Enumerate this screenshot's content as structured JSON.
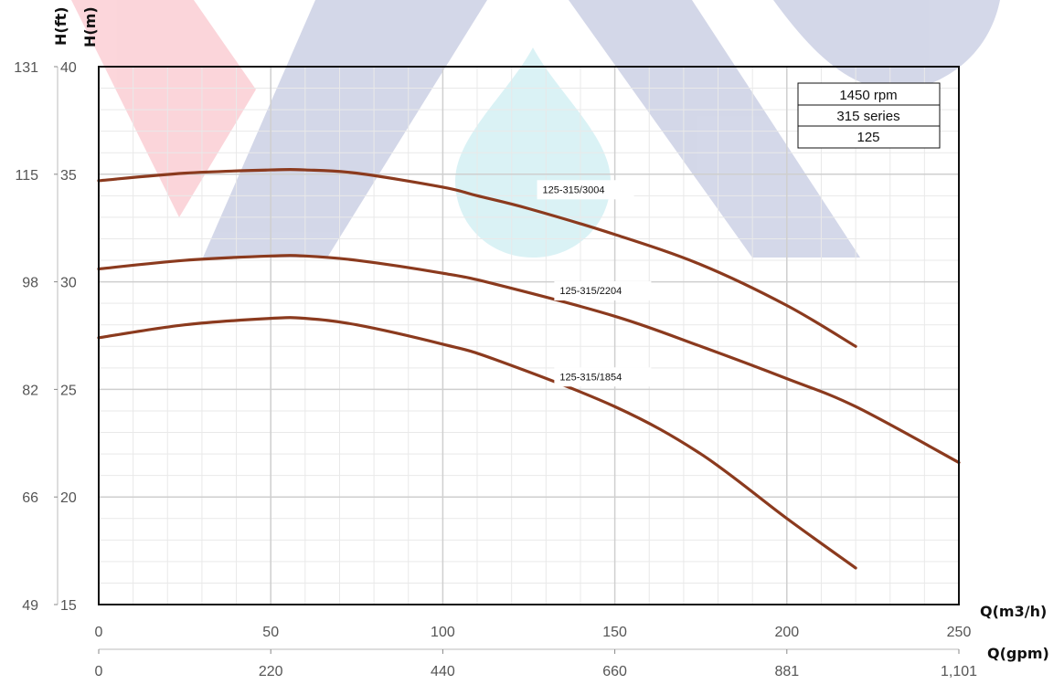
{
  "chart_data": {
    "type": "line",
    "title": "",
    "xlabel": "Q(m3/h)",
    "x2label": "Q(gpm)",
    "ylabel": "H(m)",
    "y2label": "H(ft)",
    "xlim": [
      0,
      250
    ],
    "ylim": [
      15,
      40
    ],
    "x_ticks": [
      0,
      50,
      100,
      150,
      200,
      250
    ],
    "x2_tick_labels": [
      "0",
      "220",
      "440",
      "660",
      "881",
      "1,101"
    ],
    "y_ticks": [
      15,
      20,
      25,
      30,
      35,
      40
    ],
    "y2_tick_labels": [
      "49",
      "66",
      "82",
      "98",
      "115",
      "131"
    ],
    "grid": true,
    "info_box": [
      "1450 rpm",
      "315 series",
      "125"
    ],
    "series": [
      {
        "name": "125-315/3004",
        "color": "#8b3a1e",
        "label_at": [
          129,
          34.3
        ],
        "x": [
          0,
          25,
          50,
          60,
          75,
          100,
          110,
          125,
          150,
          175,
          200,
          220
        ],
        "y": [
          34.7,
          35.05,
          35.2,
          35.2,
          35.05,
          34.4,
          34.0,
          33.4,
          32.2,
          30.8,
          28.9,
          27.0
        ]
      },
      {
        "name": "125-315/2204",
        "color": "#8b3a1e",
        "label_at": [
          134,
          29.6
        ],
        "x": [
          0,
          25,
          50,
          60,
          75,
          100,
          115,
          150,
          175,
          200,
          220,
          250
        ],
        "y": [
          30.6,
          31.0,
          31.2,
          31.2,
          31.0,
          30.4,
          29.9,
          28.4,
          27.0,
          25.5,
          24.2,
          21.6
        ]
      },
      {
        "name": "125-315/1854",
        "color": "#8b3a1e",
        "label_at": [
          134,
          25.6
        ],
        "x": [
          0,
          25,
          50,
          60,
          75,
          100,
          115,
          150,
          175,
          200,
          220
        ],
        "y": [
          27.4,
          28.0,
          28.3,
          28.3,
          28.0,
          27.1,
          26.4,
          24.2,
          22.0,
          19.0,
          16.7
        ]
      }
    ]
  }
}
